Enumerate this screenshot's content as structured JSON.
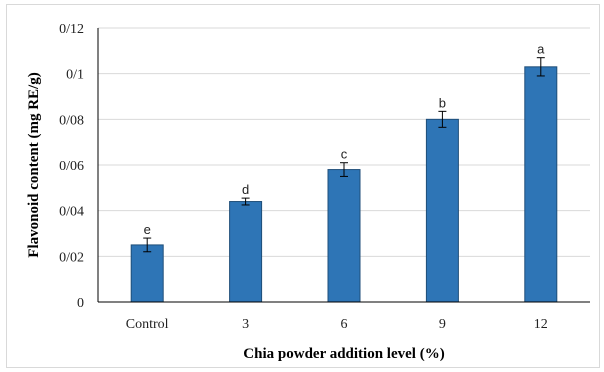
{
  "chart_data": {
    "type": "bar",
    "categories": [
      "Control",
      "3",
      "6",
      "9",
      "12"
    ],
    "values": [
      0.025,
      0.044,
      0.058,
      0.08,
      0.103
    ],
    "error": [
      0.003,
      0.0015,
      0.003,
      0.0035,
      0.004
    ],
    "significance_letters": [
      "e",
      "d",
      "c",
      "b",
      "a"
    ],
    "xlabel": "Chia powder addition level (%)",
    "ylabel": "Flavonoid content (mg RE/g)",
    "ylim": [
      0,
      0.12
    ],
    "yticks": [
      0,
      0.02,
      0.04,
      0.06,
      0.08,
      0.1,
      0.12
    ],
    "ytick_labels": [
      "0",
      "0/02",
      "0/04",
      "0/06",
      "0/08",
      "0/1",
      "0/12"
    ],
    "grid": true,
    "bar_color": "#2e75b6",
    "bar_edge_color": "#1f4e79"
  }
}
